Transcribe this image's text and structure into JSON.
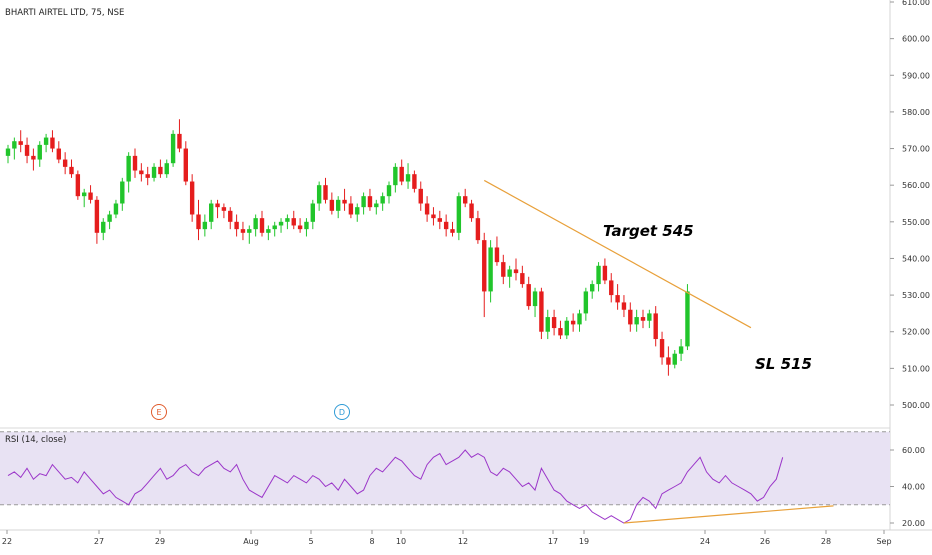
{
  "symbol_title": "BHARTI AIRTEL LTD, 75, NSE",
  "annotations": {
    "target": "Target 545",
    "stop_loss": "SL 515"
  },
  "event_markers": [
    {
      "letter": "E",
      "color": "#e05a2b"
    },
    {
      "letter": "D",
      "color": "#2f9bd6"
    }
  ],
  "colors": {
    "up": "#21c52b",
    "down": "#e51d1d",
    "trendline": "#e8a03a",
    "rsi": "#9b36c9",
    "rsi_band": "#e8e2f3"
  },
  "rsi": {
    "label": "RSI (14, close)",
    "ticks": [
      "60.00",
      "40.00",
      "20.00"
    ],
    "upper": 70,
    "lower": 30,
    "values": [
      46,
      48,
      45,
      50,
      44,
      47,
      46,
      52,
      48,
      44,
      45,
      42,
      48,
      44,
      40,
      36,
      38,
      34,
      32,
      30,
      36,
      38,
      42,
      46,
      50,
      44,
      46,
      50,
      52,
      48,
      46,
      50,
      52,
      54,
      50,
      48,
      52,
      44,
      38,
      36,
      34,
      40,
      46,
      44,
      42,
      46,
      44,
      42,
      46,
      44,
      40,
      42,
      38,
      44,
      40,
      36,
      38,
      46,
      50,
      48,
      52,
      56,
      54,
      50,
      46,
      44,
      52,
      56,
      58,
      52,
      54,
      56,
      60,
      56,
      58,
      56,
      48,
      46,
      50,
      48,
      44,
      40,
      42,
      38,
      50,
      44,
      38,
      36,
      32,
      30,
      28,
      30,
      26,
      24,
      22,
      24,
      22,
      20,
      22,
      30,
      34,
      32,
      28,
      36,
      38,
      40,
      42,
      48,
      52,
      56,
      48,
      44,
      42,
      46,
      42,
      40,
      38,
      36,
      32,
      34,
      40,
      44,
      56
    ]
  },
  "price_axis": {
    "ticks": [
      "610.00",
      "600.00",
      "590.00",
      "580.00",
      "570.00",
      "560.00",
      "550.00",
      "540.00",
      "530.00",
      "520.00",
      "510.00",
      "500.00"
    ]
  },
  "time_axis": {
    "labels": [
      "22",
      "27",
      "29",
      "Aug",
      "5",
      "8",
      "10",
      "12",
      "17",
      "19",
      "24",
      "26",
      "28",
      "Sep"
    ]
  },
  "chart_data": {
    "type": "candlestick",
    "title": "BHARTI AIRTEL LTD, 75, NSE",
    "ylim": [
      497,
      611
    ],
    "rsi_ylim": [
      17,
      73
    ],
    "candles": [
      [
        568,
        571,
        566,
        570
      ],
      [
        570,
        573,
        567,
        572
      ],
      [
        572,
        575,
        569,
        571
      ],
      [
        571,
        573,
        566,
        568
      ],
      [
        568,
        570,
        564,
        567
      ],
      [
        567,
        572,
        565,
        571
      ],
      [
        571,
        574,
        569,
        573
      ],
      [
        573,
        575,
        569,
        570
      ],
      [
        570,
        572,
        566,
        567
      ],
      [
        567,
        569,
        563,
        565
      ],
      [
        565,
        567,
        562,
        563
      ],
      [
        563,
        564,
        556,
        557
      ],
      [
        557,
        559,
        554,
        558
      ],
      [
        558,
        560,
        555,
        556
      ],
      [
        556,
        557,
        544,
        547
      ],
      [
        547,
        551,
        545,
        550
      ],
      [
        550,
        553,
        548,
        552
      ],
      [
        552,
        556,
        551,
        555
      ],
      [
        555,
        562,
        553,
        561
      ],
      [
        561,
        569,
        558,
        568
      ],
      [
        568,
        570,
        562,
        564
      ],
      [
        564,
        566,
        561,
        563
      ],
      [
        563,
        565,
        560,
        562
      ],
      [
        562,
        566,
        561,
        565
      ],
      [
        565,
        567,
        562,
        563
      ],
      [
        563,
        567,
        562,
        566
      ],
      [
        566,
        575,
        565,
        574
      ],
      [
        574,
        578,
        569,
        570
      ],
      [
        570,
        572,
        560,
        561
      ],
      [
        561,
        563,
        550,
        552
      ],
      [
        552,
        556,
        545,
        548
      ],
      [
        548,
        552,
        546,
        550
      ],
      [
        550,
        556,
        548,
        555
      ],
      [
        555,
        556,
        551,
        554
      ],
      [
        554,
        555,
        551,
        553
      ],
      [
        553,
        554,
        548,
        550
      ],
      [
        550,
        552,
        546,
        548
      ],
      [
        548,
        550,
        545,
        547
      ],
      [
        547,
        549,
        544,
        548
      ],
      [
        548,
        552,
        546,
        551
      ],
      [
        551,
        553,
        546,
        547
      ],
      [
        547,
        549,
        545,
        548
      ],
      [
        548,
        550,
        546,
        549
      ],
      [
        549,
        551,
        547,
        550
      ],
      [
        550,
        552,
        548,
        551
      ],
      [
        551,
        553,
        548,
        549
      ],
      [
        549,
        551,
        547,
        548
      ],
      [
        548,
        551,
        546,
        550
      ],
      [
        550,
        556,
        548,
        555
      ],
      [
        555,
        561,
        553,
        560
      ],
      [
        560,
        562,
        555,
        556
      ],
      [
        556,
        558,
        552,
        553
      ],
      [
        553,
        557,
        551,
        556
      ],
      [
        556,
        559,
        553,
        555
      ],
      [
        555,
        557,
        551,
        552
      ],
      [
        552,
        555,
        550,
        554
      ],
      [
        554,
        558,
        552,
        557
      ],
      [
        557,
        559,
        553,
        554
      ],
      [
        554,
        556,
        552,
        555
      ],
      [
        555,
        558,
        553,
        557
      ],
      [
        557,
        561,
        555,
        560
      ],
      [
        560,
        566,
        558,
        565
      ],
      [
        565,
        567,
        560,
        561
      ],
      [
        561,
        566,
        559,
        563
      ],
      [
        563,
        564,
        558,
        559
      ],
      [
        559,
        561,
        553,
        555
      ],
      [
        555,
        557,
        550,
        552
      ],
      [
        552,
        554,
        549,
        551
      ],
      [
        551,
        553,
        548,
        550
      ],
      [
        550,
        552,
        546,
        548
      ],
      [
        548,
        550,
        546,
        547
      ],
      [
        547,
        558,
        545,
        557
      ],
      [
        557,
        559,
        554,
        555
      ],
      [
        555,
        556,
        550,
        551
      ],
      [
        551,
        553,
        544,
        545
      ],
      [
        545,
        547,
        524,
        531
      ],
      [
        531,
        545,
        528,
        543
      ],
      [
        543,
        546,
        538,
        539
      ],
      [
        539,
        541,
        533,
        535
      ],
      [
        535,
        538,
        532,
        537
      ],
      [
        537,
        540,
        534,
        536
      ],
      [
        536,
        538,
        532,
        533
      ],
      [
        533,
        535,
        526,
        527
      ],
      [
        527,
        532,
        524,
        531
      ],
      [
        531,
        532,
        518,
        520
      ],
      [
        520,
        526,
        518,
        524
      ],
      [
        524,
        526,
        519,
        521
      ],
      [
        521,
        523,
        518,
        519
      ],
      [
        519,
        524,
        518,
        523
      ],
      [
        523,
        525,
        520,
        522
      ],
      [
        522,
        526,
        520,
        525
      ],
      [
        525,
        532,
        523,
        531
      ],
      [
        531,
        534,
        529,
        533
      ],
      [
        533,
        539,
        531,
        538
      ],
      [
        538,
        540,
        533,
        534
      ],
      [
        534,
        536,
        528,
        530
      ],
      [
        530,
        533,
        526,
        528
      ],
      [
        528,
        530,
        524,
        526
      ],
      [
        526,
        528,
        520,
        522
      ],
      [
        522,
        526,
        520,
        524
      ],
      [
        524,
        526,
        521,
        523
      ],
      [
        523,
        526,
        521,
        525
      ],
      [
        525,
        527,
        516,
        518
      ],
      [
        518,
        520,
        511,
        513
      ],
      [
        513,
        516,
        508,
        511
      ],
      [
        511,
        515,
        510,
        514
      ],
      [
        514,
        518,
        512,
        516
      ],
      [
        516,
        533,
        515,
        531
      ]
    ],
    "trendlines": [
      {
        "name": "resistance",
        "from": [
          75,
          561.3
        ],
        "to": [
          117,
          521.1
        ]
      },
      {
        "name": "rsi-support",
        "from": [
          97,
          20.0
        ],
        "to": [
          130,
          29.4
        ]
      }
    ]
  }
}
